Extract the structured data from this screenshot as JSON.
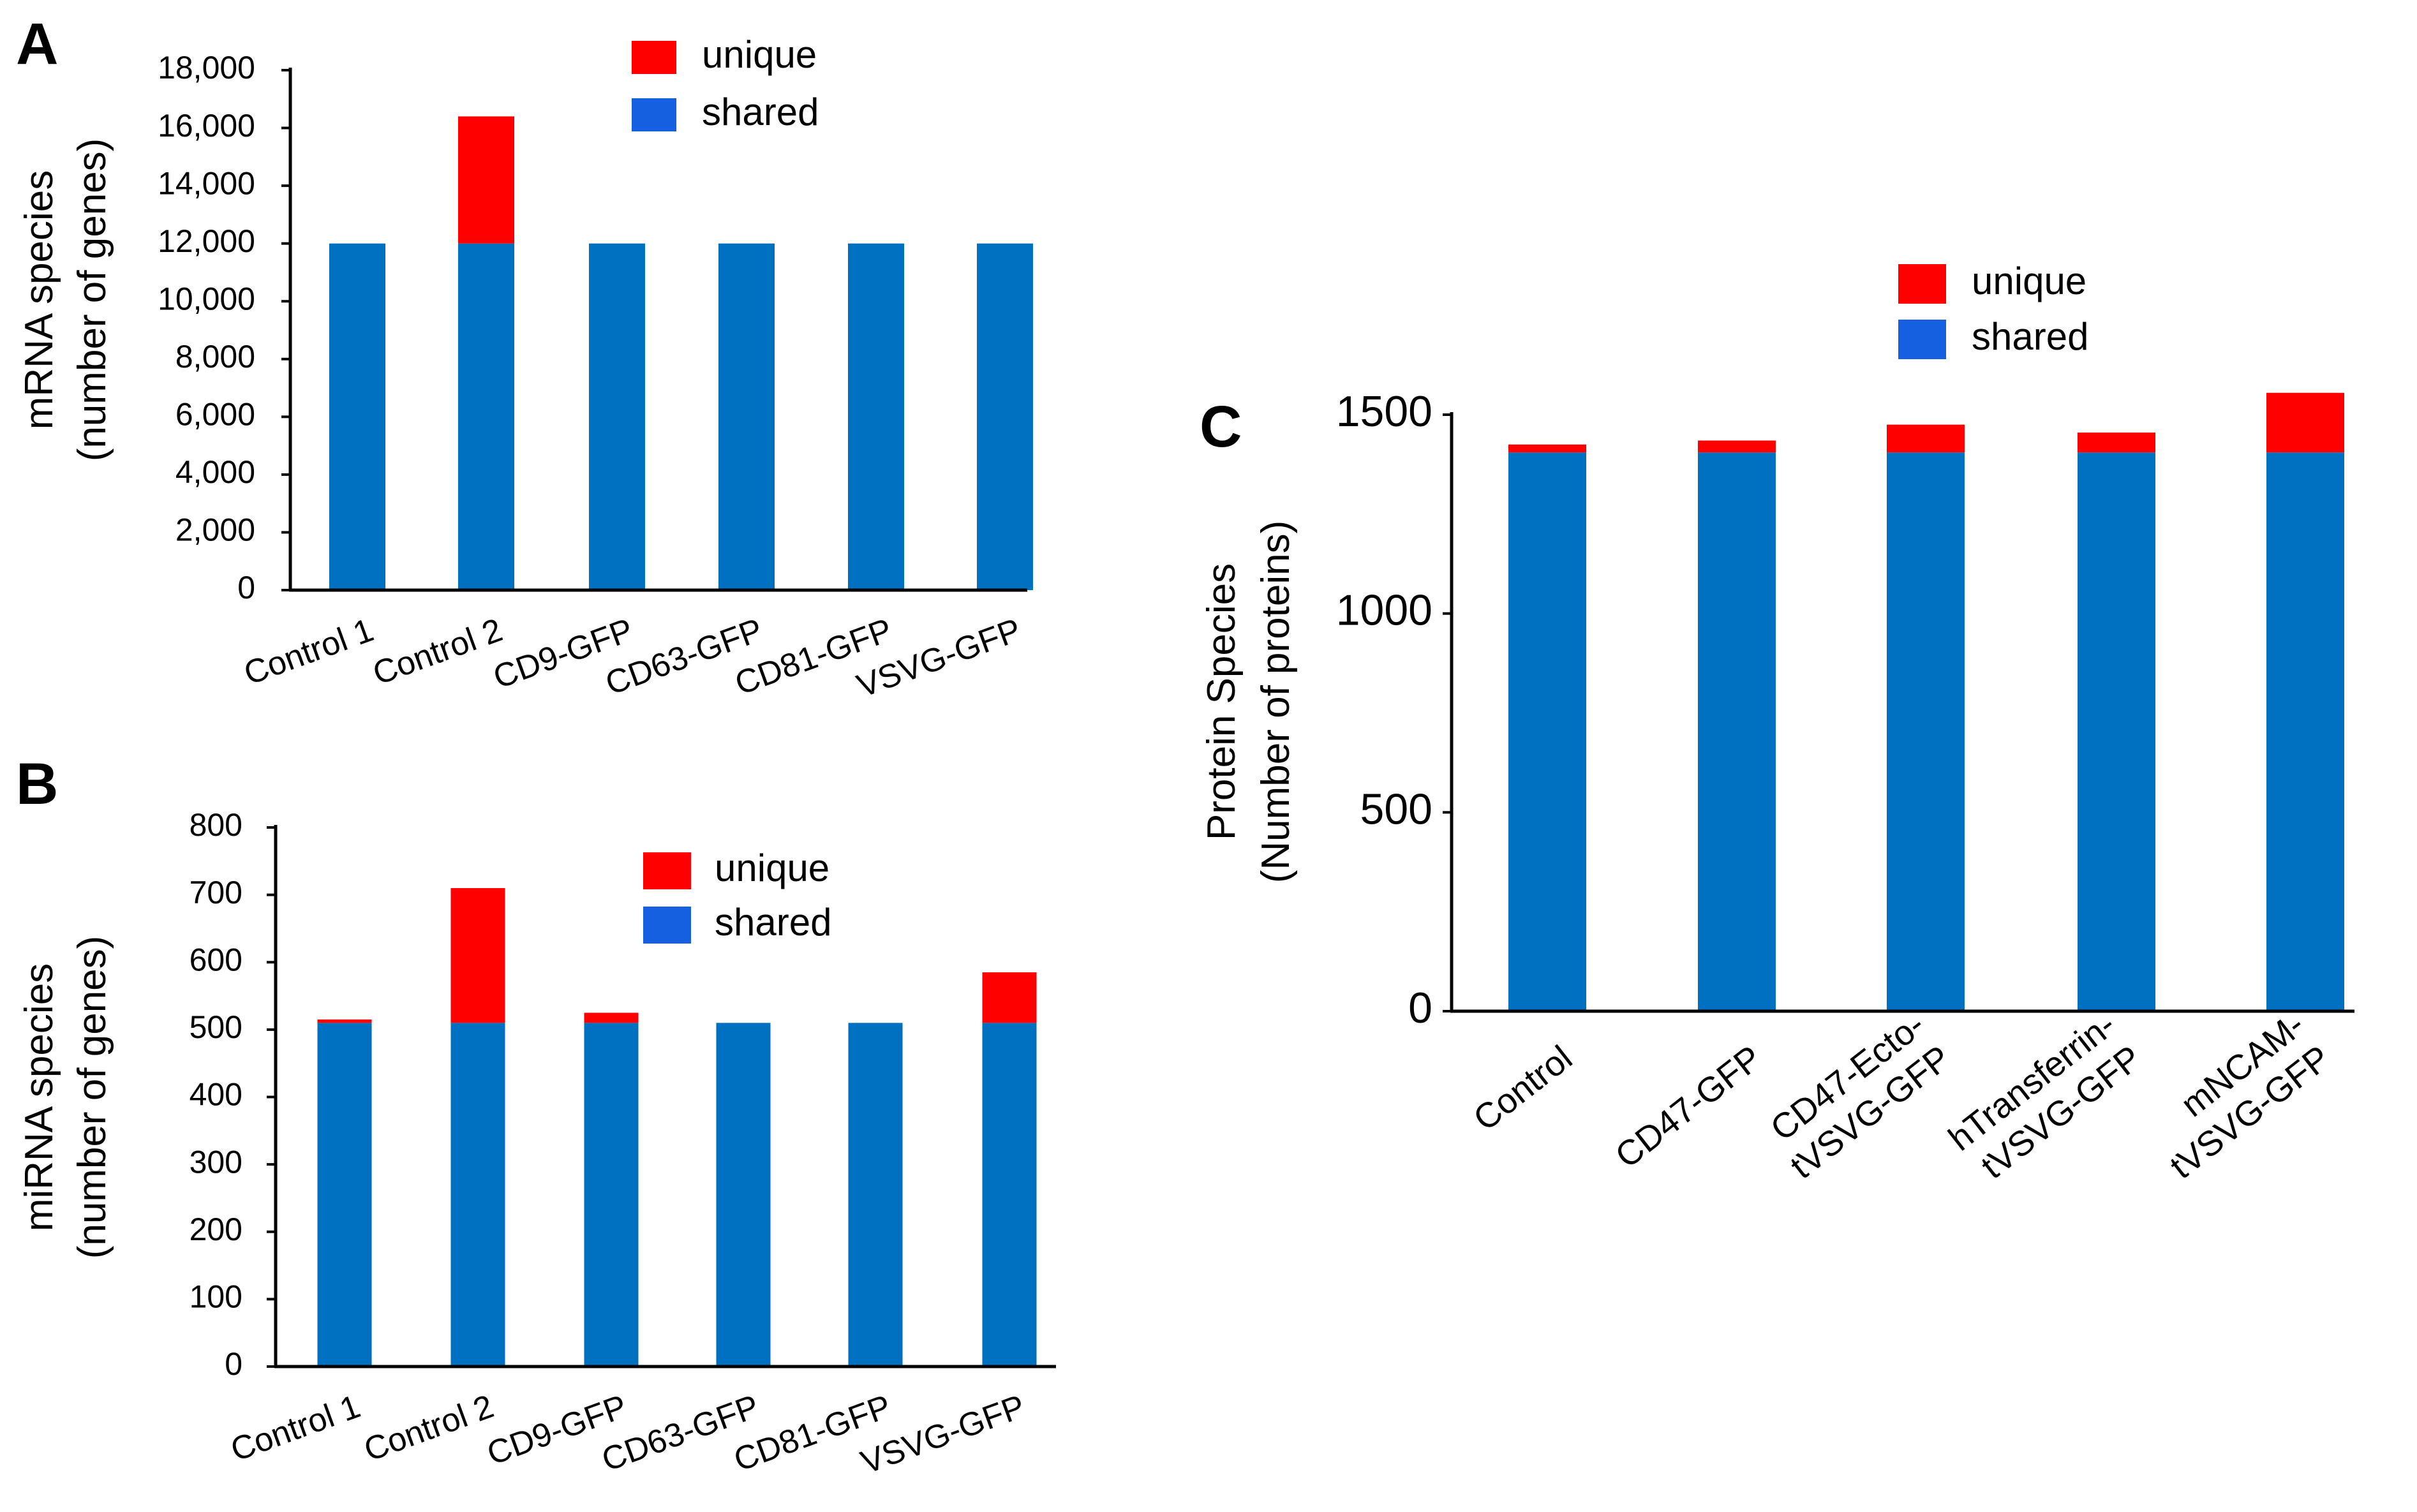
{
  "colors": {
    "unique": "#ff0000",
    "shared": "#0070c0",
    "shared_legend": "#1560e0"
  },
  "chart_data": [
    {
      "id": "A",
      "panel_label": "A",
      "type": "bar",
      "stacked": true,
      "ylabel_line1": "mRNA species",
      "ylabel_line2": "(number of genes)",
      "ylim": [
        0,
        18000
      ],
      "yticks": [
        0,
        2000,
        4000,
        6000,
        8000,
        10000,
        12000,
        14000,
        16000,
        18000
      ],
      "ytick_labels": [
        "0",
        "2,000",
        "4,000",
        "6,000",
        "8,000",
        "10,000",
        "12,000",
        "14,000",
        "16,000",
        "18,000"
      ],
      "categories": [
        [
          "Control 1"
        ],
        [
          "Control 2"
        ],
        [
          "CD9-GFP"
        ],
        [
          "CD63-GFP"
        ],
        [
          "CD81-GFP"
        ],
        [
          "VSVG-GFP"
        ]
      ],
      "series": [
        {
          "name": "shared",
          "values": [
            12000,
            12000,
            12000,
            12000,
            12000,
            12000
          ]
        },
        {
          "name": "unique",
          "values": [
            0,
            4400,
            0,
            0,
            0,
            0
          ]
        }
      ],
      "legend": [
        "unique",
        "shared"
      ]
    },
    {
      "id": "B",
      "panel_label": "B",
      "type": "bar",
      "stacked": true,
      "ylabel_line1": "miRNA species",
      "ylabel_line2": "(number of genes)",
      "ylim": [
        0,
        800
      ],
      "yticks": [
        0,
        100,
        200,
        300,
        400,
        500,
        600,
        700,
        800
      ],
      "ytick_labels": [
        "0",
        "100",
        "200",
        "300",
        "400",
        "500",
        "600",
        "700",
        "800"
      ],
      "categories": [
        [
          "Control 1"
        ],
        [
          "Control 2"
        ],
        [
          "CD9-GFP"
        ],
        [
          "CD63-GFP"
        ],
        [
          "CD81-GFP"
        ],
        [
          "VSVG-GFP"
        ]
      ],
      "series": [
        {
          "name": "shared",
          "values": [
            510,
            510,
            510,
            510,
            510,
            510
          ]
        },
        {
          "name": "unique",
          "values": [
            5,
            200,
            15,
            0,
            0,
            75
          ]
        }
      ],
      "legend": [
        "unique",
        "shared"
      ]
    },
    {
      "id": "C",
      "panel_label": "C",
      "type": "bar",
      "stacked": true,
      "ylabel_line1": "Protein Species",
      "ylabel_line2": "(Number of proteins)",
      "ylim": [
        0,
        1500
      ],
      "yticks": [
        0,
        500,
        1000,
        1500
      ],
      "ytick_labels": [
        "0",
        "500",
        "1000",
        "1500"
      ],
      "categories": [
        [
          "Control"
        ],
        [
          "CD47-GFP"
        ],
        [
          "CD47-Ecto-",
          "tVSVG-GFP"
        ],
        [
          "hTransferrin-",
          "tVSVG-GFP"
        ],
        [
          "mNCAM-",
          "tVSVG-GFP"
        ]
      ],
      "series": [
        {
          "name": "shared",
          "values": [
            1405,
            1405,
            1405,
            1405,
            1405
          ]
        },
        {
          "name": "unique",
          "values": [
            20,
            30,
            70,
            50,
            150
          ]
        }
      ],
      "legend": [
        "unique",
        "shared"
      ]
    }
  ]
}
